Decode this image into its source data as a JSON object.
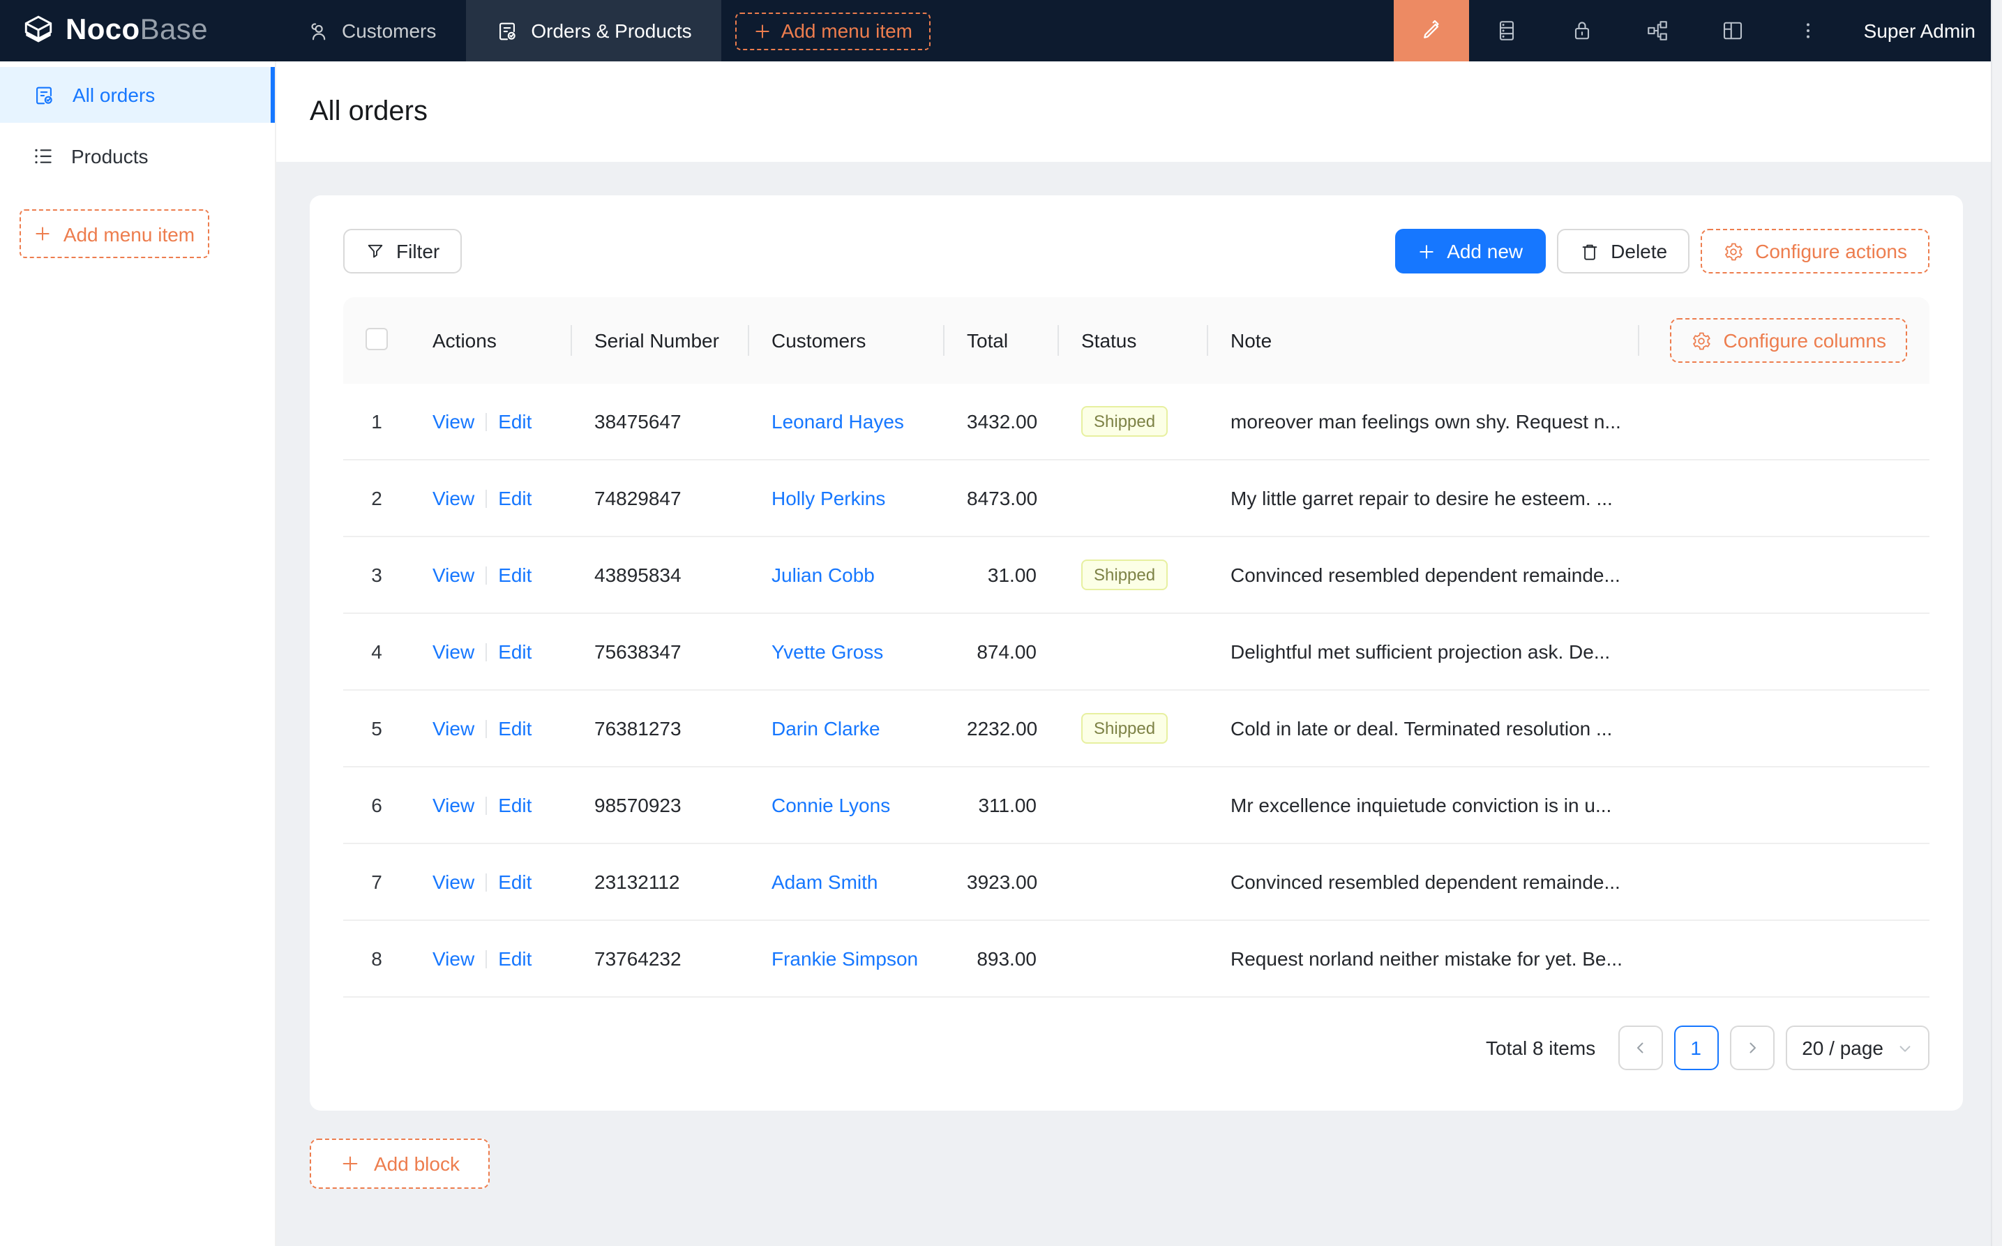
{
  "colors": {
    "primary": "#1677ff",
    "accent_orange": "#ed7d4e",
    "designer_orange": "#ed8a63",
    "navbar_bg": "#0d1b2f",
    "sidebar_active_bg": "#e7f4ff",
    "page_bg": "#eef0f3",
    "status_shipped_bg": "#fcffe6",
    "status_shipped_border": "#e7f0a0",
    "status_shipped_text": "#7d8246"
  },
  "navbar": {
    "logo_noco": "Noco",
    "logo_base": "Base",
    "tabs": [
      {
        "label": "Customers",
        "icon": "user-icon",
        "active": false
      },
      {
        "label": "Orders & Products",
        "icon": "order-icon",
        "active": true
      }
    ],
    "add_menu_item_label": "Add menu item",
    "right_icons": [
      "highlighter-icon",
      "database-icon",
      "lock-icon",
      "partition-icon",
      "layout-icon",
      "ellipsis-icon"
    ],
    "user": "Super Admin"
  },
  "sidebar": {
    "items": [
      {
        "label": "All orders",
        "icon": "order-check-icon",
        "active": true
      },
      {
        "label": "Products",
        "icon": "list-icon",
        "active": false
      }
    ],
    "add_menu_item_label": "Add menu item"
  },
  "page": {
    "title": "All orders"
  },
  "toolbar": {
    "filter_label": "Filter",
    "add_new_label": "Add new",
    "delete_label": "Delete",
    "configure_actions_label": "Configure actions"
  },
  "table": {
    "configure_columns_label": "Configure columns",
    "columns": [
      "Actions",
      "Serial Number",
      "Customers",
      "Total",
      "Status",
      "Note"
    ],
    "rows": [
      {
        "index": "1",
        "actions": [
          "View",
          "Edit"
        ],
        "serial": "38475647",
        "customer": "Leonard Hayes",
        "total": "3432.00",
        "status": "Shipped",
        "note": "moreover man feelings own shy. Request n..."
      },
      {
        "index": "2",
        "actions": [
          "View",
          "Edit"
        ],
        "serial": "74829847",
        "customer": "Holly Perkins",
        "total": "8473.00",
        "status": "",
        "note": "My little garret repair to desire he esteem. ..."
      },
      {
        "index": "3",
        "actions": [
          "View",
          "Edit"
        ],
        "serial": "43895834",
        "customer": "Julian Cobb",
        "total": "31.00",
        "status": "Shipped",
        "note": "Convinced resembled dependent remainde..."
      },
      {
        "index": "4",
        "actions": [
          "View",
          "Edit"
        ],
        "serial": "75638347",
        "customer": "Yvette Gross",
        "total": "874.00",
        "status": "",
        "note": "Delightful met sufficient projection ask. De..."
      },
      {
        "index": "5",
        "actions": [
          "View",
          "Edit"
        ],
        "serial": "76381273",
        "customer": "Darin Clarke",
        "total": "2232.00",
        "status": "Shipped",
        "note": "Cold in late or deal. Terminated resolution ..."
      },
      {
        "index": "6",
        "actions": [
          "View",
          "Edit"
        ],
        "serial": "98570923",
        "customer": "Connie Lyons",
        "total": "311.00",
        "status": "",
        "note": "Mr excellence inquietude conviction is in u..."
      },
      {
        "index": "7",
        "actions": [
          "View",
          "Edit"
        ],
        "serial": "23132112",
        "customer": "Adam Smith",
        "total": "3923.00",
        "status": "",
        "note": "Convinced resembled dependent remainde..."
      },
      {
        "index": "8",
        "actions": [
          "View",
          "Edit"
        ],
        "serial": "73764232",
        "customer": "Frankie Simpson",
        "total": "893.00",
        "status": "",
        "note": "Request norland neither mistake for yet. Be..."
      }
    ]
  },
  "pagination": {
    "total_label": "Total 8 items",
    "current_page": "1",
    "page_size": "20 / page"
  },
  "footer": {
    "add_block_label": "Add block"
  }
}
